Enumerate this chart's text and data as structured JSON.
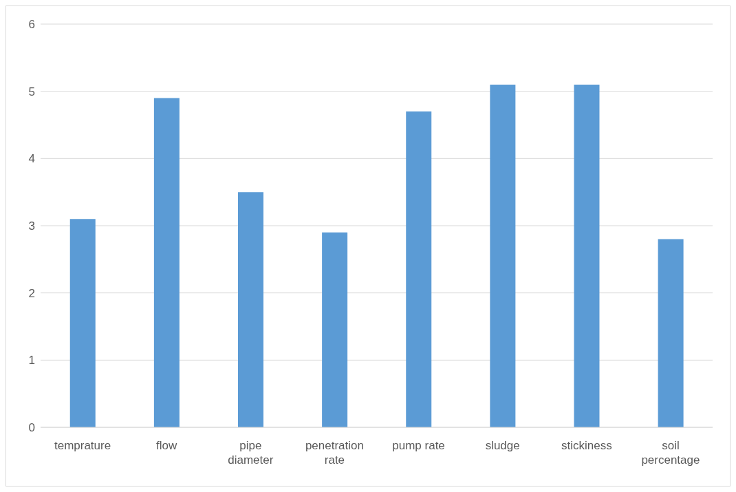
{
  "chart_data": {
    "type": "bar",
    "categories": [
      "temprature",
      "flow",
      "pipe diameter",
      "penetration rate",
      "pump rate",
      "sludge",
      "stickiness",
      "soil percentage"
    ],
    "values": [
      3.1,
      4.9,
      3.5,
      2.9,
      4.7,
      5.1,
      5.1,
      2.8
    ],
    "color": "#5b9bd5",
    "ylim": [
      0,
      6
    ],
    "yticks": [
      0,
      1,
      2,
      3,
      4,
      5,
      6
    ],
    "grid": "y"
  }
}
